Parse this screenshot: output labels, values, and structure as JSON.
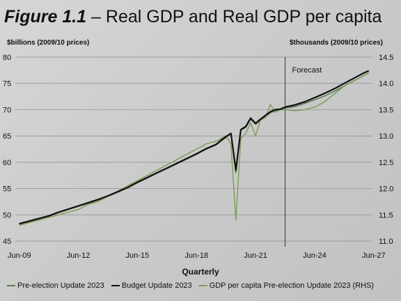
{
  "figure": {
    "number": "Figure 1.1",
    "separator": " – ",
    "title": "Real GDP and Real GDP per capita"
  },
  "chart_data": {
    "type": "line",
    "left_unit_label": "$billions (2009/10 prices)",
    "right_unit_label": "$thousands (2009/10 prices)",
    "xlabel": "Quarterly",
    "annotation": "Forecast",
    "forecast_start": 2023.0,
    "xlim": [
      2009.3,
      2027.4
    ],
    "x_tick_labels": [
      "Jun-09",
      "Jun-12",
      "Jun-15",
      "Jun-18",
      "Jun-21",
      "Jun-24",
      "Jun-27"
    ],
    "x_tick_values": [
      2009.5,
      2012.5,
      2015.5,
      2018.5,
      2021.5,
      2024.5,
      2027.5
    ],
    "ylim_left": [
      45,
      80
    ],
    "y_ticks_left": [
      "45",
      "50",
      "55",
      "60",
      "65",
      "70",
      "75",
      "80"
    ],
    "ylim_right": [
      11.0,
      14.5
    ],
    "y_ticks_right": [
      "11.0",
      "11.5",
      "12.0",
      "12.5",
      "13.0",
      "13.5",
      "14.0",
      "14.5"
    ],
    "grid": "horizontal",
    "legend_position": "bottom",
    "colors": {
      "pre_election": "#5a7a52",
      "budget": "#111111",
      "per_capita": "#7d9a56",
      "grid": "#8a8a8a",
      "forecast_line": "#333333"
    },
    "series": [
      {
        "name": "Pre-election Update 2023",
        "axis": "left",
        "x": [
          2009.5,
          2010.0,
          2010.5,
          2011.0,
          2011.5,
          2012.0,
          2012.5,
          2013.0,
          2013.5,
          2014.0,
          2014.5,
          2015.0,
          2015.5,
          2016.0,
          2016.5,
          2017.0,
          2017.5,
          2018.0,
          2018.5,
          2019.0,
          2019.5,
          2019.75,
          2020.0,
          2020.25,
          2020.5,
          2020.75,
          2021.0,
          2021.25,
          2021.5,
          2021.75,
          2022.0,
          2022.25,
          2022.5,
          2022.75,
          2023.0,
          2023.5,
          2024.0,
          2024.5,
          2025.0,
          2025.5,
          2026.0,
          2026.5,
          2027.0,
          2027.25
        ],
        "values": [
          48.2,
          48.7,
          49.2,
          49.7,
          50.4,
          51.0,
          51.6,
          52.2,
          52.8,
          53.5,
          54.3,
          55.1,
          56.1,
          57.0,
          57.9,
          58.8,
          59.7,
          60.6,
          61.5,
          62.5,
          63.3,
          64.0,
          64.7,
          65.4,
          58.0,
          66.1,
          66.6,
          68.2,
          67.2,
          68.0,
          68.7,
          69.4,
          69.8,
          70.0,
          70.3,
          70.6,
          71.2,
          71.9,
          72.6,
          73.5,
          74.5,
          75.5,
          76.5,
          77.0
        ]
      },
      {
        "name": "Budget Update 2023",
        "axis": "left",
        "x": [
          2009.5,
          2010.0,
          2010.5,
          2011.0,
          2011.5,
          2012.0,
          2012.5,
          2013.0,
          2013.5,
          2014.0,
          2014.5,
          2015.0,
          2015.5,
          2016.0,
          2016.5,
          2017.0,
          2017.5,
          2018.0,
          2018.5,
          2019.0,
          2019.5,
          2019.75,
          2020.0,
          2020.25,
          2020.5,
          2020.75,
          2021.0,
          2021.25,
          2021.5,
          2021.75,
          2022.0,
          2022.25,
          2022.5,
          2022.75,
          2023.0,
          2023.5,
          2024.0,
          2024.5,
          2025.0,
          2025.5,
          2026.0,
          2026.5,
          2027.0,
          2027.25
        ],
        "values": [
          48.3,
          48.8,
          49.3,
          49.8,
          50.5,
          51.1,
          51.7,
          52.3,
          52.9,
          53.6,
          54.4,
          55.2,
          56.2,
          57.1,
          58.0,
          58.9,
          59.8,
          60.7,
          61.6,
          62.6,
          63.4,
          64.2,
          64.9,
          65.5,
          58.5,
          66.2,
          66.8,
          68.4,
          67.4,
          68.2,
          68.9,
          69.6,
          70.0,
          70.1,
          70.5,
          70.9,
          71.5,
          72.3,
          73.1,
          74.0,
          75.0,
          76.0,
          77.0,
          77.4
        ]
      },
      {
        "name": "GDP per capita Pre-election Update 2023 (RHS)",
        "axis": "right",
        "x": [
          2009.5,
          2010.0,
          2010.5,
          2011.0,
          2011.5,
          2012.0,
          2012.5,
          2013.0,
          2013.5,
          2014.0,
          2014.5,
          2015.0,
          2015.5,
          2016.0,
          2016.5,
          2017.0,
          2017.5,
          2018.0,
          2018.5,
          2019.0,
          2019.5,
          2019.75,
          2020.0,
          2020.25,
          2020.5,
          2020.75,
          2021.0,
          2021.25,
          2021.5,
          2021.75,
          2022.0,
          2022.25,
          2022.5,
          2022.75,
          2023.0,
          2023.5,
          2024.0,
          2024.5,
          2025.0,
          2025.5,
          2026.0,
          2026.5,
          2027.0,
          2027.25
        ],
        "values": [
          11.3,
          11.35,
          11.4,
          11.45,
          11.5,
          11.55,
          11.6,
          11.7,
          11.75,
          11.85,
          11.95,
          12.05,
          12.15,
          12.25,
          12.35,
          12.45,
          12.55,
          12.65,
          12.75,
          12.85,
          12.9,
          12.95,
          13.0,
          12.85,
          11.4,
          12.95,
          13.05,
          13.25,
          13.0,
          13.3,
          13.35,
          13.6,
          13.45,
          13.5,
          13.5,
          13.48,
          13.5,
          13.55,
          13.65,
          13.8,
          13.95,
          14.05,
          14.15,
          14.2
        ]
      }
    ]
  }
}
